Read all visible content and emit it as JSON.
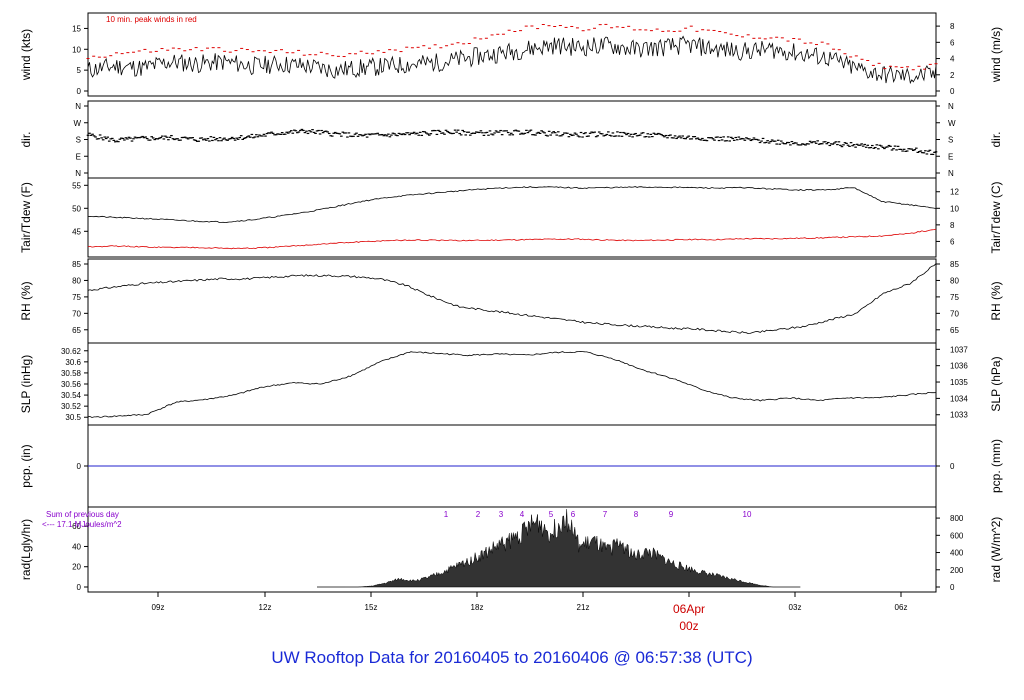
{
  "footer": {
    "title": "UW Rooftop Data for 20160405  to  20160406 @ 06:57:38  (UTC)"
  },
  "colors": {
    "line": "#000000",
    "peak": "#dd0000",
    "dew": "#dd0000",
    "pcp": "#2222cc",
    "purple": "#8800cc",
    "title": "#1a2ad6",
    "date_label": "#cc0000"
  },
  "x_axis": {
    "tick_labels": [
      "09z",
      "12z",
      "15z",
      "18z",
      "21z",
      "00z",
      "03z",
      "06z"
    ],
    "date_label": "06Apr"
  },
  "chart_data": [
    {
      "type": "line",
      "ylabel": "wind (kts)",
      "ylabel_right": "wind (m/s)",
      "annotation": "10 min. peak winds in red",
      "ylim": [
        0,
        17.5
      ],
      "yticks": [
        0,
        5,
        10,
        15
      ],
      "ylim_right": [
        0,
        9
      ],
      "yticks_right": [
        0,
        2,
        4,
        6,
        8
      ],
      "series": [
        {
          "values": [
            5,
            6,
            5.5,
            7,
            6.5,
            7,
            6,
            6.5,
            6,
            5,
            5.5,
            6,
            6.5,
            7,
            8,
            9,
            10,
            11,
            10.5,
            11,
            10,
            10.5,
            11,
            10,
            9.5,
            10,
            9,
            8,
            5.5,
            4,
            3.5,
            4
          ]
        },
        {
          "values": [
            8,
            9,
            9.5,
            10,
            10,
            10,
            9.5,
            9.5,
            9,
            8.5,
            9,
            10,
            10,
            11,
            12,
            14,
            15,
            16,
            15,
            15.5,
            15,
            14.5,
            15,
            14,
            13,
            13,
            12,
            11,
            8,
            6,
            5.5,
            6
          ]
        }
      ]
    },
    {
      "type": "scatter",
      "ylabel": "dir.",
      "ylabel_right": "dir.",
      "tick_labels": [
        "N",
        "W",
        "S",
        "E",
        "N"
      ],
      "series": [
        {
          "values": [
            205,
            175,
            185,
            190,
            180,
            185,
            195,
            215,
            225,
            210,
            200,
            205,
            210,
            220,
            215,
            215,
            220,
            210,
            205,
            210,
            205,
            200,
            190,
            185,
            180,
            170,
            160,
            160,
            150,
            140,
            125,
            110
          ]
        }
      ]
    },
    {
      "type": "line",
      "ylabel": "Tair/Tdew (F)",
      "ylabel_right": "Tair/Tdew (C)",
      "ylim": [
        40.5,
        55.5
      ],
      "yticks": [
        45,
        50,
        55
      ],
      "yticks_right": [
        6,
        8,
        10,
        12
      ],
      "series": [
        {
          "values": [
            48.3,
            48,
            47.8,
            47.5,
            47.2,
            47,
            47.5,
            48.3,
            49.2,
            50.3,
            51.5,
            52.4,
            53,
            53.5,
            54,
            54.4,
            54.6,
            54.6,
            54.4,
            54.5,
            54.6,
            54.6,
            54.5,
            54.4,
            54.5,
            54.2,
            54,
            54,
            54.5,
            51.5,
            50.8,
            50
          ]
        },
        {
          "values": [
            41.6,
            41.8,
            41.6,
            41.5,
            41.5,
            41.3,
            41.3,
            41.6,
            42,
            42.4,
            42.7,
            43,
            43.1,
            43,
            43,
            43.1,
            43.2,
            43.3,
            43.3,
            43.1,
            43,
            43.1,
            43.2,
            43.2,
            43.4,
            43.4,
            43.5,
            43.6,
            43.8,
            44,
            44.5,
            45.5
          ]
        }
      ]
    },
    {
      "type": "line",
      "ylabel": "RH (%)",
      "ylabel_right": "RH (%)",
      "ylim": [
        62.5,
        85
      ],
      "yticks": [
        65,
        70,
        75,
        80,
        85
      ],
      "series": [
        {
          "values": [
            77,
            78,
            79,
            79.5,
            80,
            80.5,
            80.5,
            81,
            81.5,
            81.5,
            81.2,
            80.5,
            78.5,
            75,
            72,
            71,
            70,
            69,
            68,
            67,
            66.5,
            66,
            65.5,
            65.2,
            64.5,
            64,
            65,
            66,
            68,
            70,
            76,
            79,
            85
          ]
        }
      ]
    },
    {
      "type": "line",
      "ylabel": "SLP (inHg)",
      "ylabel_right": "SLP (hPa)",
      "ylim": [
        30.495,
        30.625
      ],
      "yticks": [
        30.5,
        30.52,
        30.54,
        30.56,
        30.58,
        30.6,
        30.62
      ],
      "yticks_right": [
        1033,
        1034,
        1035,
        1036,
        1037
      ],
      "series": [
        {
          "values": [
            30.5,
            30.502,
            30.505,
            30.527,
            30.532,
            30.54,
            30.555,
            30.562,
            30.56,
            30.575,
            30.6,
            30.618,
            30.615,
            30.612,
            30.614,
            30.612,
            30.617,
            30.618,
            30.605,
            30.585,
            30.57,
            30.55,
            30.535,
            30.53,
            30.535,
            30.53,
            30.535,
            30.535,
            30.54,
            30.545
          ]
        }
      ]
    },
    {
      "type": "line",
      "ylabel": "pcp. (in)",
      "ylabel_right": "pcp. (mm)",
      "yticks": [
        0
      ],
      "yticks_right": [
        0
      ],
      "series": [
        {
          "values": [
            0,
            0
          ]
        }
      ]
    },
    {
      "type": "area",
      "ylabel": "rad(Lgly/hr)",
      "ylabel_right": "rad (W/m^2)",
      "annotation": "Sum of previous day\n<--- 17.1 MJoules/m^2",
      "ylim": [
        0,
        74
      ],
      "yticks": [
        0,
        20,
        40,
        60
      ],
      "yticks_right": [
        0,
        200,
        400,
        600,
        800
      ],
      "hour_labels": [
        "1",
        "2",
        "3",
        "4",
        "5",
        "6",
        "7",
        "8",
        "9",
        "10"
      ],
      "series": [
        {
          "values": [
            0,
            0,
            0,
            0,
            1,
            4,
            8,
            6,
            9,
            14,
            20,
            26,
            32,
            40,
            46,
            55,
            65,
            52,
            72,
            40,
            45,
            36,
            44,
            30,
            35,
            28,
            22,
            18,
            14,
            11,
            8,
            5,
            2,
            0,
            0,
            0
          ]
        }
      ]
    }
  ]
}
